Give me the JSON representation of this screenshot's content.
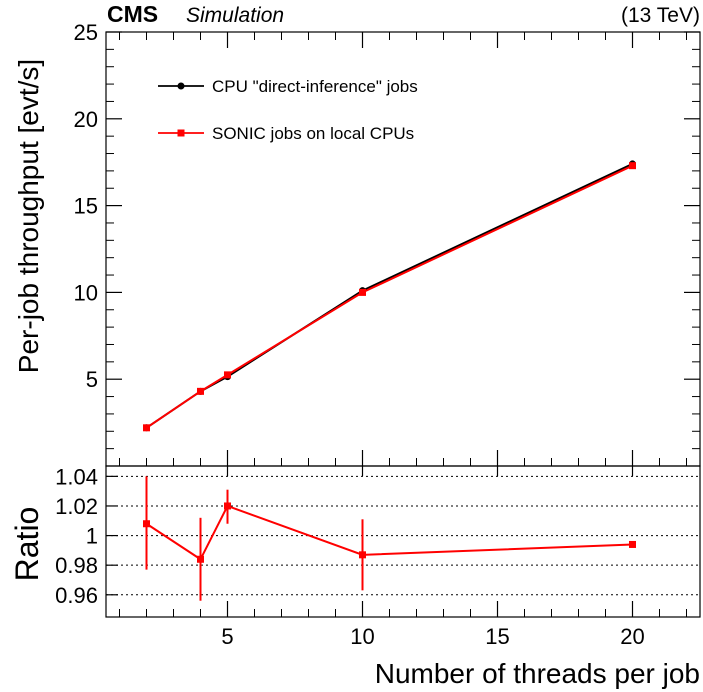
{
  "header": {
    "experiment": "CMS",
    "tag": "Simulation",
    "energy": "(13 TeV)"
  },
  "chart_data": [
    {
      "type": "line",
      "panel": "main",
      "title": "",
      "xlabel": "Number of threads per job",
      "ylabel": "Per-job throughput [evt/s]",
      "xlim": [
        0.5,
        22.5
      ],
      "ylim": [
        0,
        25
      ],
      "yticks": [
        5,
        10,
        15,
        20,
        25
      ],
      "ytick_labels": [
        "5",
        "10",
        "15",
        "20",
        "25"
      ],
      "legend_position": "top-left",
      "x": [
        2,
        4,
        5,
        10,
        20
      ],
      "series": [
        {
          "name": "CPU \"direct-inference\" jobs",
          "color": "#000000",
          "marker": "circle",
          "values": [
            2.2,
            4.3,
            5.15,
            10.1,
            17.4
          ]
        },
        {
          "name": "SONIC jobs on local CPUs",
          "color": "#ff0000",
          "marker": "square",
          "values": [
            2.2,
            4.3,
            5.25,
            10.0,
            17.3
          ]
        }
      ]
    },
    {
      "type": "line",
      "panel": "ratio",
      "ylabel": "Ratio",
      "xlabel": "Number of threads per job",
      "xlim": [
        0.5,
        22.5
      ],
      "ylim": [
        0.945,
        1.047
      ],
      "grid": true,
      "yticks": [
        0.96,
        0.98,
        1.0,
        1.02,
        1.04
      ],
      "ytick_labels": [
        "0.96",
        "0.98",
        "1",
        "1.02",
        "1.04"
      ],
      "xticks": [
        5,
        10,
        15,
        20
      ],
      "xtick_labels": [
        "5",
        "10",
        "15",
        "20"
      ],
      "series": [
        {
          "name": "Ratio",
          "color": "#ff0000",
          "marker": "square",
          "x": [
            2,
            4,
            5,
            10,
            20
          ],
          "values": [
            1.008,
            0.984,
            1.02,
            0.987,
            0.994
          ],
          "err_low": [
            0.031,
            0.028,
            0.012,
            0.024,
            0.0
          ],
          "err_high": [
            0.032,
            0.028,
            0.011,
            0.024,
            0.0
          ]
        }
      ]
    }
  ]
}
